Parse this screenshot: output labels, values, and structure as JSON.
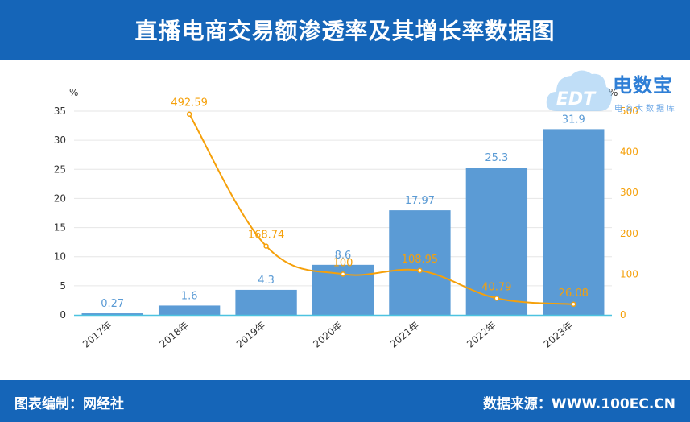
{
  "header": {
    "title": "直播电商交易额渗透率及其增长率数据图"
  },
  "footer": {
    "left": "图表编制：网经社",
    "right": "数据来源：WWW.100EC.CN"
  },
  "logo": {
    "brand": "电数宝",
    "sub": "电商大数据库",
    "mark": "EDT"
  },
  "colors": {
    "bar": "#5b9bd5",
    "line": "#f5a00a",
    "header": "#1565b8"
  },
  "chart_data": {
    "type": "bar",
    "categories": [
      "2017年",
      "2018年",
      "2019年",
      "2020年",
      "2021年",
      "2022年",
      "2023年"
    ],
    "series": [
      {
        "type": "bar",
        "axis": "left",
        "values": [
          0.27,
          1.6,
          4.3,
          8.6,
          17.97,
          25.3,
          31.9
        ],
        "labels": [
          "0.27",
          "1.6",
          "4.3",
          "8.6",
          "17.97",
          "25.3",
          "31.9"
        ]
      },
      {
        "type": "line",
        "axis": "right",
        "values": [
          null,
          492.59,
          168.74,
          100,
          108.95,
          40.79,
          26.08
        ],
        "labels": [
          "",
          "492.59",
          "168.74",
          "100",
          "108.95",
          "40.79",
          "26.08"
        ]
      }
    ],
    "y_left": {
      "unit": "%",
      "ticks": [
        0,
        5,
        10,
        15,
        20,
        25,
        30,
        35
      ],
      "range": [
        0,
        35
      ]
    },
    "y_right": {
      "unit": "%",
      "ticks": [
        0,
        100,
        200,
        300,
        400,
        500
      ],
      "range": [
        0,
        500
      ]
    },
    "grid": true,
    "legend": "none"
  }
}
